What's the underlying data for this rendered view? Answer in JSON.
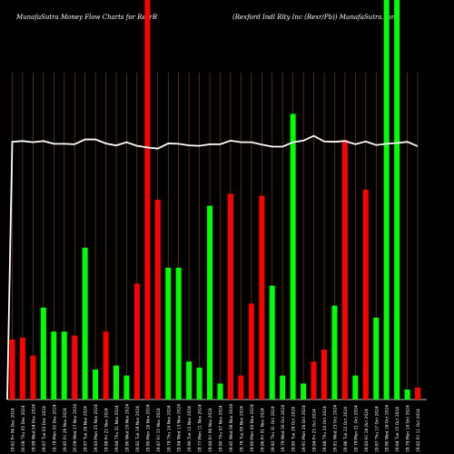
{
  "header": {
    "left": "MunafaSutra  Money Flow  Charts for RexrB",
    "right": "(Rexford Indl Rlty Inc (Rexr/Pb)) MunafaSutra.com"
  },
  "colors": {
    "up": "#00ff00",
    "down": "#ff0000",
    "grid": "#8b4a00",
    "line": "#ffffff",
    "background": "#000000"
  },
  "chart_data": {
    "type": "bar",
    "title": "MunafaSutra  Money Flow  Charts for RexrB",
    "subtitle": "(Rexford Indl Rlty Inc (Rexr/Pb)) MunafaSutra.com",
    "ylim": [
      0,
      100
    ],
    "grid": "vertical",
    "categories": [
      "19.62 Fri 06 Dec 2024",
      "20.08 Thu 05 Dec 2024",
      "19.89 Wed 04 Dec 2024",
      "19.87 Tue 03 Dec 2024",
      "19.78 Mon 02 Dec 2024",
      "19.85 Fri 29 Nov 2024",
      "20.09 Wed 27 Nov 2024",
      "19.97 Tue 26 Nov 2024",
      "19.83 Mon 25 Nov 2024",
      "19.88 Fri 22 Nov 2024",
      "19.84 Thu 21 Nov 2024",
      "19.90 Wed 20 Nov 2024",
      "19.82 Tue 19 Nov 2024",
      "19.80 Mon 18 Nov 2024",
      "19.87 Fri 15 Nov 2024",
      "19.78 Thu 14 Nov 2024",
      "19.84 Wed 13 Nov 2024",
      "19.90 Tue 12 Nov 2024",
      "19.77 Mon 11 Nov 2024",
      "19.84 Fri 08 Nov 2024",
      "19.90 Thu 07 Nov 2024",
      "19.85 Wed 06 Nov 2024",
      "19.76 Tue 05 Nov 2024",
      "19.80 Mon 04 Nov 2024",
      "19.86 Fri 01 Nov 2024",
      "19.82 Thu 31 Oct 2024",
      "19.79 Wed 30 Oct 2024",
      "19.85 Tue 29 Oct 2024",
      "19.91 Mon 28 Oct 2024",
      "19.84 Fri 25 Oct 2024",
      "19.88 Thu 24 Oct 2024",
      "19.81 Wed 23 Oct 2024",
      "19.86 Tue 22 Oct 2024",
      "19.79 Mon 21 Oct 2024",
      "19.83 Fri 18 Oct 2024",
      "19.87 Thu 17 Oct 2024",
      "19.90 Wed 16 Oct 2024",
      "19.84 Tue 15 Oct 2024",
      "19.78 Mon 14 Oct 2024",
      "19.82 Fri 11 Oct 2024"
    ],
    "series": [
      {
        "values": [
          15,
          15.5,
          11,
          23,
          17,
          17,
          16,
          38,
          7.5,
          17,
          8.5,
          6,
          29,
          100,
          50,
          33,
          33,
          9.5,
          8,
          48.5,
          4,
          51.5,
          6,
          24,
          51,
          28.5,
          6,
          71.5,
          4,
          9.5,
          12.5,
          23.5,
          65,
          6,
          52.5,
          20.5,
          100,
          100,
          2.5,
          3
        ],
        "directions": [
          "down",
          "down",
          "down",
          "up",
          "up",
          "up",
          "down",
          "up",
          "up",
          "down",
          "up",
          "up",
          "down",
          "down",
          "down",
          "up",
          "up",
          "up",
          "up",
          "up",
          "up",
          "down",
          "down",
          "down",
          "down",
          "up",
          "up",
          "up",
          "up",
          "down",
          "down",
          "up",
          "down",
          "up",
          "down",
          "up",
          "up",
          "up",
          "up",
          "down"
        ]
      }
    ],
    "line_values": [
      64.5,
      64.7,
      64.4,
      64.7,
      64,
      64,
      63.9,
      65.1,
      65.1,
      64.1,
      63.6,
      64.4,
      63.5,
      63.1,
      62.8,
      64.1,
      64,
      63.6,
      63.5,
      63.9,
      63.9,
      64.8,
      64.4,
      64.4,
      63.8,
      63.3,
      63.3,
      64.4,
      64.8,
      66,
      64.6,
      64.5,
      64.7,
      63.9,
      64.6,
      63.7,
      64,
      64.2,
      64.5,
      63.4
    ],
    "xlabel": "",
    "ylabel": ""
  }
}
